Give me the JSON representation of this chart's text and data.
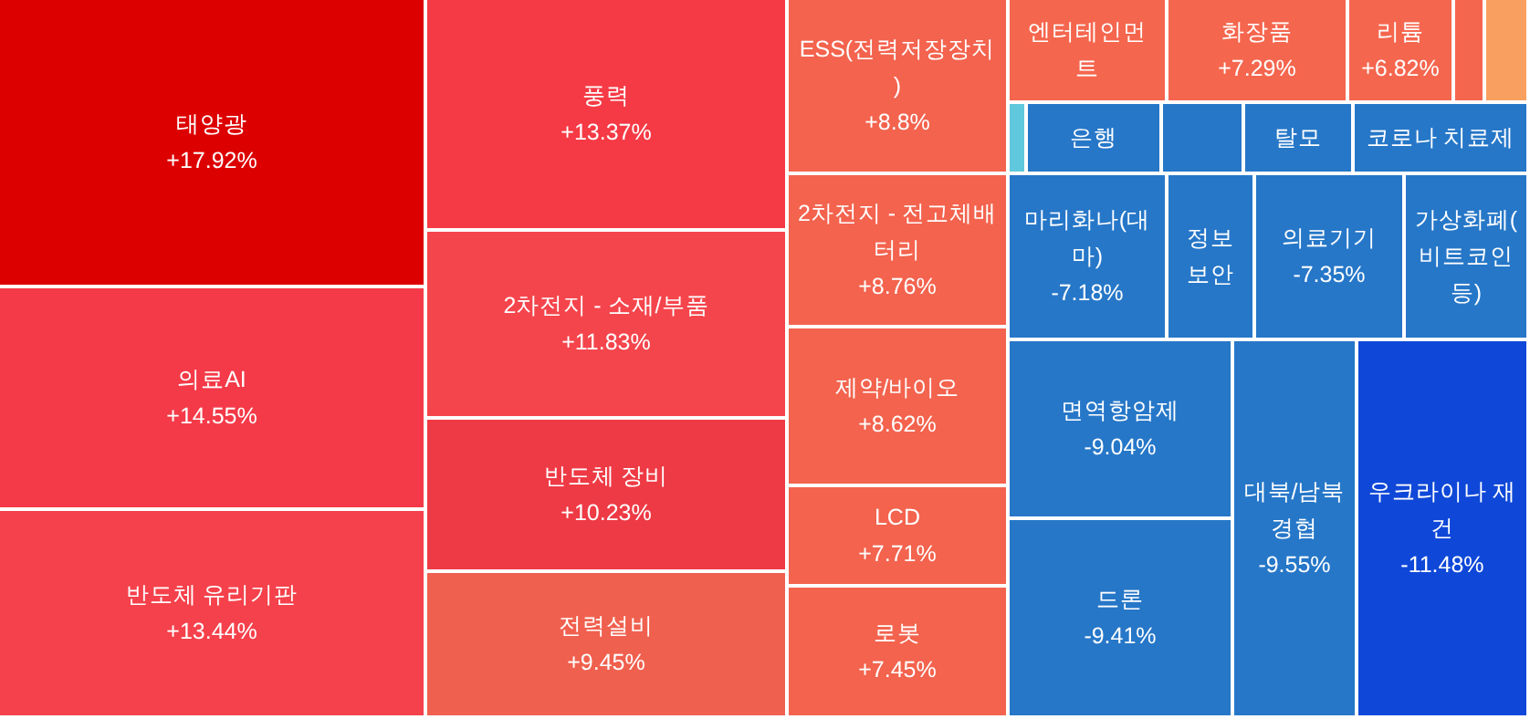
{
  "chart_data": {
    "type": "other",
    "categories": [
      "태양광",
      "의료AI",
      "반도체 유리기판",
      "풍력",
      "2차전지 - 소재/부품",
      "반도체 장비",
      "전력설비",
      "ESS(전력저장장치)",
      "2차전지 - 전고체배터리",
      "제약/바이오",
      "LCD",
      "로봇",
      "엔터테인먼트",
      "화장품",
      "리튬",
      null,
      null,
      null,
      "은행",
      null,
      "탈모",
      "코로나 치료제",
      "마리화나(대마)",
      "정보보안",
      "의료기기",
      "가상화폐(비트코인 등)",
      "면역항암제",
      "드론",
      "대북/남북경협",
      "우크라이나 재건"
    ],
    "values": [
      17.92,
      14.55,
      13.44,
      13.37,
      11.83,
      10.23,
      9.45,
      8.8,
      8.76,
      8.62,
      7.71,
      7.45,
      null,
      7.29,
      6.82,
      null,
      null,
      null,
      null,
      null,
      null,
      null,
      -7.18,
      null,
      -7.35,
      null,
      -9.04,
      -9.41,
      -9.55,
      -11.48
    ],
    "value_labels": [
      "+17.92%",
      "+14.55%",
      "+13.44%",
      "+13.37%",
      "+11.83%",
      "+10.23%",
      "+9.45%",
      "+8.8%",
      "+8.76%",
      "+8.62%",
      "+7.71%",
      "+7.45%",
      null,
      "+7.29%",
      "+6.82%",
      null,
      null,
      null,
      null,
      null,
      null,
      null,
      "-7.18%",
      null,
      "-7.35%",
      null,
      "-9.04%",
      "-9.41%",
      "-9.55%",
      "-11.48%"
    ],
    "colors": [
      "#dd0000",
      "#f43a48",
      "#f5414b",
      "#f53a45",
      "#f5454c",
      "#ee3a45",
      "#f0604e",
      "#f3634e",
      "#f3634e",
      "#f3634e",
      "#f3634e",
      "#f3634e",
      "#f5664e",
      "#f5664e",
      "#f5664e",
      "#f5664e",
      "#f9a060",
      "#60c8dc",
      "#2677c8",
      "#2677c8",
      "#2677c8",
      "#2677c8",
      "#2677c8",
      "#2677c8",
      "#2677c8",
      "#2677c8",
      "#2677c8",
      "#2677c8",
      "#2677c8",
      "#0f48d8"
    ]
  }
}
